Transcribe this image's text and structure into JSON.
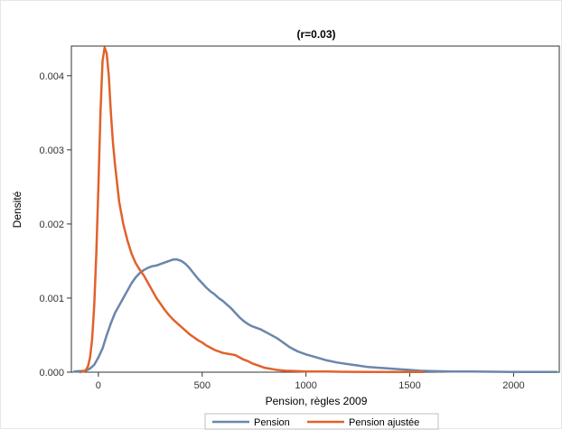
{
  "chart_data": {
    "type": "line",
    "title": "(r=0.03)",
    "xlabel": "Pension, règles 2009",
    "ylabel": "Densité",
    "xlim": [
      -130,
      2220
    ],
    "ylim": [
      0,
      0.0044
    ],
    "x_ticks": [
      0,
      500,
      1000,
      1500,
      2000
    ],
    "x_tick_labels": [
      "0",
      "500",
      "1000",
      "1500",
      "2000"
    ],
    "y_ticks": [
      0,
      0.001,
      0.002,
      0.003,
      0.004
    ],
    "y_tick_labels": [
      "0.000",
      "0.001",
      "0.002",
      "0.003",
      "0.004"
    ],
    "grid": false,
    "legend_position": "bottom-center",
    "series": [
      {
        "name": "Pension",
        "color": "#6b86aa",
        "points": [
          [
            -120,
            1e-05
          ],
          [
            -60,
            2e-05
          ],
          [
            -40,
            5e-05
          ],
          [
            -20,
            0.0001
          ],
          [
            0,
            0.0002
          ],
          [
            20,
            0.00032
          ],
          [
            40,
            0.0005
          ],
          [
            60,
            0.00066
          ],
          [
            80,
            0.0008
          ],
          [
            100,
            0.0009
          ],
          [
            120,
            0.001
          ],
          [
            140,
            0.0011
          ],
          [
            160,
            0.0012
          ],
          [
            180,
            0.00128
          ],
          [
            200,
            0.00134
          ],
          [
            220,
            0.00138
          ],
          [
            240,
            0.00141
          ],
          [
            260,
            0.00143
          ],
          [
            280,
            0.00144
          ],
          [
            300,
            0.00146
          ],
          [
            320,
            0.00148
          ],
          [
            340,
            0.0015
          ],
          [
            360,
            0.00152
          ],
          [
            380,
            0.00152
          ],
          [
            400,
            0.0015
          ],
          [
            420,
            0.00146
          ],
          [
            440,
            0.0014
          ],
          [
            460,
            0.00133
          ],
          [
            480,
            0.00126
          ],
          [
            500,
            0.0012
          ],
          [
            520,
            0.00114
          ],
          [
            540,
            0.00109
          ],
          [
            560,
            0.00105
          ],
          [
            580,
            0.001
          ],
          [
            600,
            0.00096
          ],
          [
            620,
            0.00091
          ],
          [
            640,
            0.00086
          ],
          [
            660,
            0.0008
          ],
          [
            680,
            0.00074
          ],
          [
            700,
            0.00069
          ],
          [
            720,
            0.00065
          ],
          [
            740,
            0.00062
          ],
          [
            760,
            0.0006
          ],
          [
            780,
            0.00058
          ],
          [
            800,
            0.00055
          ],
          [
            820,
            0.00052
          ],
          [
            840,
            0.00049
          ],
          [
            860,
            0.00046
          ],
          [
            880,
            0.00042
          ],
          [
            900,
            0.00038
          ],
          [
            920,
            0.00034
          ],
          [
            940,
            0.00031
          ],
          [
            960,
            0.00028
          ],
          [
            980,
            0.00026
          ],
          [
            1000,
            0.00024
          ],
          [
            1050,
            0.0002
          ],
          [
            1100,
            0.00016
          ],
          [
            1150,
            0.00013
          ],
          [
            1200,
            0.00011
          ],
          [
            1250,
            9e-05
          ],
          [
            1300,
            7e-05
          ],
          [
            1350,
            6e-05
          ],
          [
            1400,
            5e-05
          ],
          [
            1450,
            4e-05
          ],
          [
            1500,
            3e-05
          ],
          [
            1550,
            2e-05
          ],
          [
            1600,
            1.5e-05
          ],
          [
            1700,
            1e-05
          ],
          [
            1800,
            8e-06
          ],
          [
            2000,
            4e-06
          ],
          [
            2210,
            2e-06
          ]
        ]
      },
      {
        "name": "Pension ajustée",
        "color": "#e1622b",
        "points": [
          [
            -90,
            0.0
          ],
          [
            -70,
            1e-05
          ],
          [
            -60,
            3e-05
          ],
          [
            -50,
            8e-05
          ],
          [
            -40,
            0.0002
          ],
          [
            -30,
            0.00045
          ],
          [
            -20,
            0.0009
          ],
          [
            -10,
            0.0016
          ],
          [
            0,
            0.0025
          ],
          [
            10,
            0.0035
          ],
          [
            20,
            0.0042
          ],
          [
            30,
            0.00438
          ],
          [
            40,
            0.0043
          ],
          [
            50,
            0.004
          ],
          [
            60,
            0.0035
          ],
          [
            70,
            0.0031
          ],
          [
            80,
            0.0028
          ],
          [
            90,
            0.00255
          ],
          [
            100,
            0.0023
          ],
          [
            120,
            0.002
          ],
          [
            140,
            0.00178
          ],
          [
            160,
            0.0016
          ],
          [
            180,
            0.00147
          ],
          [
            200,
            0.00138
          ],
          [
            220,
            0.0013
          ],
          [
            240,
            0.0012
          ],
          [
            260,
            0.0011
          ],
          [
            280,
            0.001
          ],
          [
            300,
            0.00092
          ],
          [
            320,
            0.00084
          ],
          [
            340,
            0.00077
          ],
          [
            360,
            0.00071
          ],
          [
            380,
            0.00066
          ],
          [
            400,
            0.00061
          ],
          [
            420,
            0.00056
          ],
          [
            440,
            0.00051
          ],
          [
            460,
            0.00047
          ],
          [
            480,
            0.00043
          ],
          [
            500,
            0.0004
          ],
          [
            520,
            0.00036
          ],
          [
            540,
            0.00033
          ],
          [
            560,
            0.0003
          ],
          [
            580,
            0.00028
          ],
          [
            600,
            0.00026
          ],
          [
            620,
            0.00025
          ],
          [
            640,
            0.00024
          ],
          [
            660,
            0.00023
          ],
          [
            680,
            0.0002
          ],
          [
            700,
            0.00017
          ],
          [
            720,
            0.00015
          ],
          [
            740,
            0.00012
          ],
          [
            760,
            0.0001
          ],
          [
            780,
            8e-05
          ],
          [
            800,
            6e-05
          ],
          [
            820,
            5e-05
          ],
          [
            840,
            4e-05
          ],
          [
            860,
            3e-05
          ],
          [
            900,
            2e-05
          ],
          [
            950,
            1.5e-05
          ],
          [
            1000,
            1e-05
          ],
          [
            1100,
            8e-06
          ],
          [
            1200,
            5e-06
          ],
          [
            1300,
            4e-06
          ],
          [
            1400,
            3e-06
          ],
          [
            1500,
            2e-06
          ],
          [
            1570,
            2e-06
          ]
        ]
      }
    ]
  }
}
